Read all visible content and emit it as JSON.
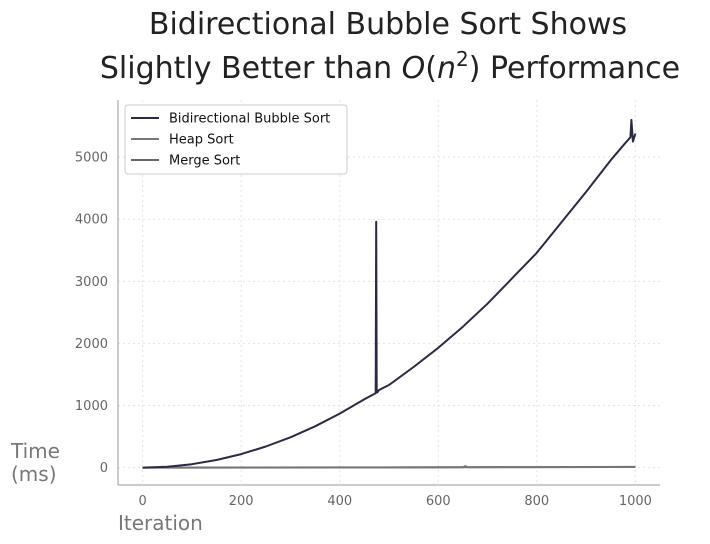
{
  "chart_data": {
    "type": "line",
    "title_line1": "Bidirectional Bubble Sort Shows",
    "title_line2_prefix": "Slightly Better than ",
    "title_math_O": "O",
    "title_math_open": "(",
    "title_math_n": "n",
    "title_math_exp": "2",
    "title_math_close": ")",
    "title_line2_suffix": " Performance",
    "xlabel": "Iteration",
    "ylabel_line1": "Time",
    "ylabel_line2": "(ms)",
    "xlim": [
      -50,
      1050
    ],
    "ylim": [
      -280,
      5920
    ],
    "xticks": [
      0,
      200,
      400,
      600,
      800,
      1000
    ],
    "yticks": [
      0,
      1000,
      2000,
      3000,
      4000,
      5000
    ],
    "grid": true,
    "legend_position": "top-left",
    "series": [
      {
        "name": "Bidirectional Bubble Sort",
        "color": "#2a2a45",
        "x": [
          0,
          50,
          100,
          150,
          200,
          250,
          300,
          350,
          400,
          450,
          470,
          473,
          474,
          475,
          476,
          480,
          500,
          550,
          600,
          650,
          700,
          750,
          800,
          850,
          900,
          950,
          980,
          990,
          992,
          995,
          1000
        ],
        "y": [
          0,
          14,
          55,
          123,
          218,
          340,
          488,
          665,
          870,
          1100,
          1185,
          1200,
          3960,
          1210,
          1210,
          1250,
          1330,
          1620,
          1930,
          2270,
          2640,
          3050,
          3460,
          3950,
          4440,
          4950,
          5230,
          5320,
          5600,
          5250,
          5380
        ]
      },
      {
        "name": "Heap Sort",
        "color": "#777777",
        "x": [
          0,
          200,
          400,
          600,
          650,
          655,
          660,
          800,
          1000
        ],
        "y": [
          0,
          1,
          2,
          4,
          5,
          22,
          6,
          8,
          10
        ]
      },
      {
        "name": "Merge Sort",
        "color": "#666666",
        "x": [
          0,
          200,
          400,
          600,
          800,
          1000
        ],
        "y": [
          0,
          2,
          4,
          6,
          8,
          12
        ]
      }
    ]
  }
}
